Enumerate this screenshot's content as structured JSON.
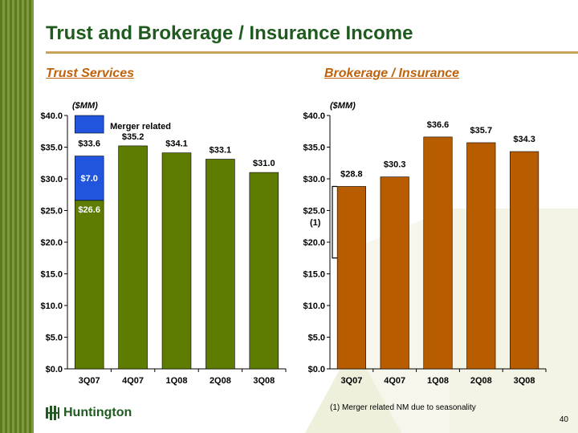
{
  "title": "Trust and Brokerage / Insurance Income",
  "brand": "Huntington",
  "page_number": "40",
  "footnote": "(1) Merger related NM due to seasonality",
  "colors": {
    "title": "#1f5a1f",
    "section_heading": "#c0620c",
    "trust_bar": "#5e7d00",
    "merger_bar": "#2255dd",
    "brokerage_bar": "#b85c00"
  },
  "chart_data": [
    {
      "type": "bar",
      "title": "Trust Services",
      "unit_label": "($MM)",
      "categories": [
        "3Q07",
        "4Q07",
        "1Q08",
        "2Q08",
        "3Q08"
      ],
      "yticks": [
        "$0.0",
        "$5.0",
        "$10.0",
        "$15.0",
        "$20.0",
        "$25.0",
        "$30.0",
        "$35.0",
        "$40.0"
      ],
      "ylim": [
        0,
        40
      ],
      "stacked": true,
      "series": [
        {
          "name": "",
          "values": [
            26.6,
            35.2,
            34.1,
            33.1,
            31.0
          ],
          "color": "#5e7d00"
        },
        {
          "name": "Merger related",
          "values": [
            7.0,
            0,
            0,
            0,
            0
          ],
          "color": "#2255dd"
        }
      ],
      "segment_labels": {
        "base": "$26.6",
        "merger": "$7.0"
      },
      "total_labels": [
        "$33.6",
        "$35.2",
        "$34.1",
        "$33.1",
        "$31.0"
      ],
      "legend": {
        "label": "Merger related",
        "position": "top-left"
      }
    },
    {
      "type": "bar",
      "title": "Brokerage / Insurance",
      "unit_label": "($MM)",
      "categories": [
        "3Q07",
        "4Q07",
        "1Q08",
        "2Q08",
        "3Q08"
      ],
      "yticks": [
        "$0.0",
        "$5.0",
        "$10.0",
        "$15.0",
        "$20.0",
        "$25.0",
        "$30.0",
        "$35.0",
        "$40.0"
      ],
      "ylim": [
        0,
        40
      ],
      "series": [
        {
          "name": "",
          "values": [
            28.8,
            30.3,
            36.6,
            35.7,
            34.3
          ],
          "color": "#b85c00"
        }
      ],
      "value_labels": [
        "$28.8",
        "$30.3",
        "$36.6",
        "$35.7",
        "$34.3"
      ],
      "annotation": "(1)"
    }
  ]
}
